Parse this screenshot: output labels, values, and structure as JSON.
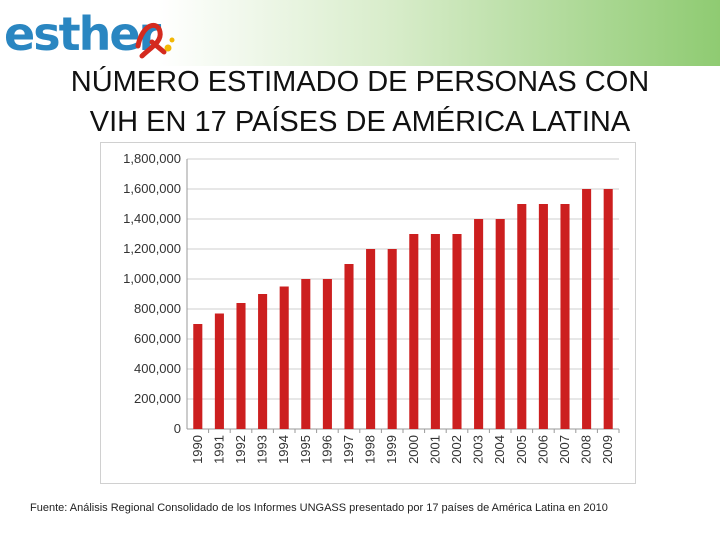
{
  "logo": {
    "text": "esther"
  },
  "title": {
    "line1": "NÚMERO ESTIMADO DE PERSONAS CON",
    "line2": "VIH EN 17 PAÍSES DE AMÉRICA LATINA"
  },
  "source": "Fuente: Análisis Regional Consolidado de los Informes UNGASS presentado por 17 países de América Latina en 2010",
  "colors": {
    "bar": "#cc1f1f",
    "grid": "#cfcfcf",
    "logo": "#2a86c1"
  },
  "chart_data": {
    "type": "bar",
    "categories": [
      "1990",
      "1991",
      "1992",
      "1993",
      "1994",
      "1995",
      "1996",
      "1997",
      "1998",
      "1999",
      "2000",
      "2001",
      "2002",
      "2003",
      "2004",
      "2005",
      "2006",
      "2007",
      "2008",
      "2009"
    ],
    "values": [
      700000,
      770000,
      840000,
      900000,
      950000,
      1000000,
      1000000,
      1100000,
      1200000,
      1200000,
      1300000,
      1300000,
      1300000,
      1400000,
      1400000,
      1500000,
      1500000,
      1500000,
      1600000,
      1600000
    ],
    "yticks": [
      "0",
      "200,000",
      "400,000",
      "600,000",
      "800,000",
      "1,000,000",
      "1,200,000",
      "1,400,000",
      "1,600,000",
      "1,800,000"
    ],
    "ylim": [
      0,
      1800000
    ],
    "grid": true,
    "legend": "none"
  }
}
